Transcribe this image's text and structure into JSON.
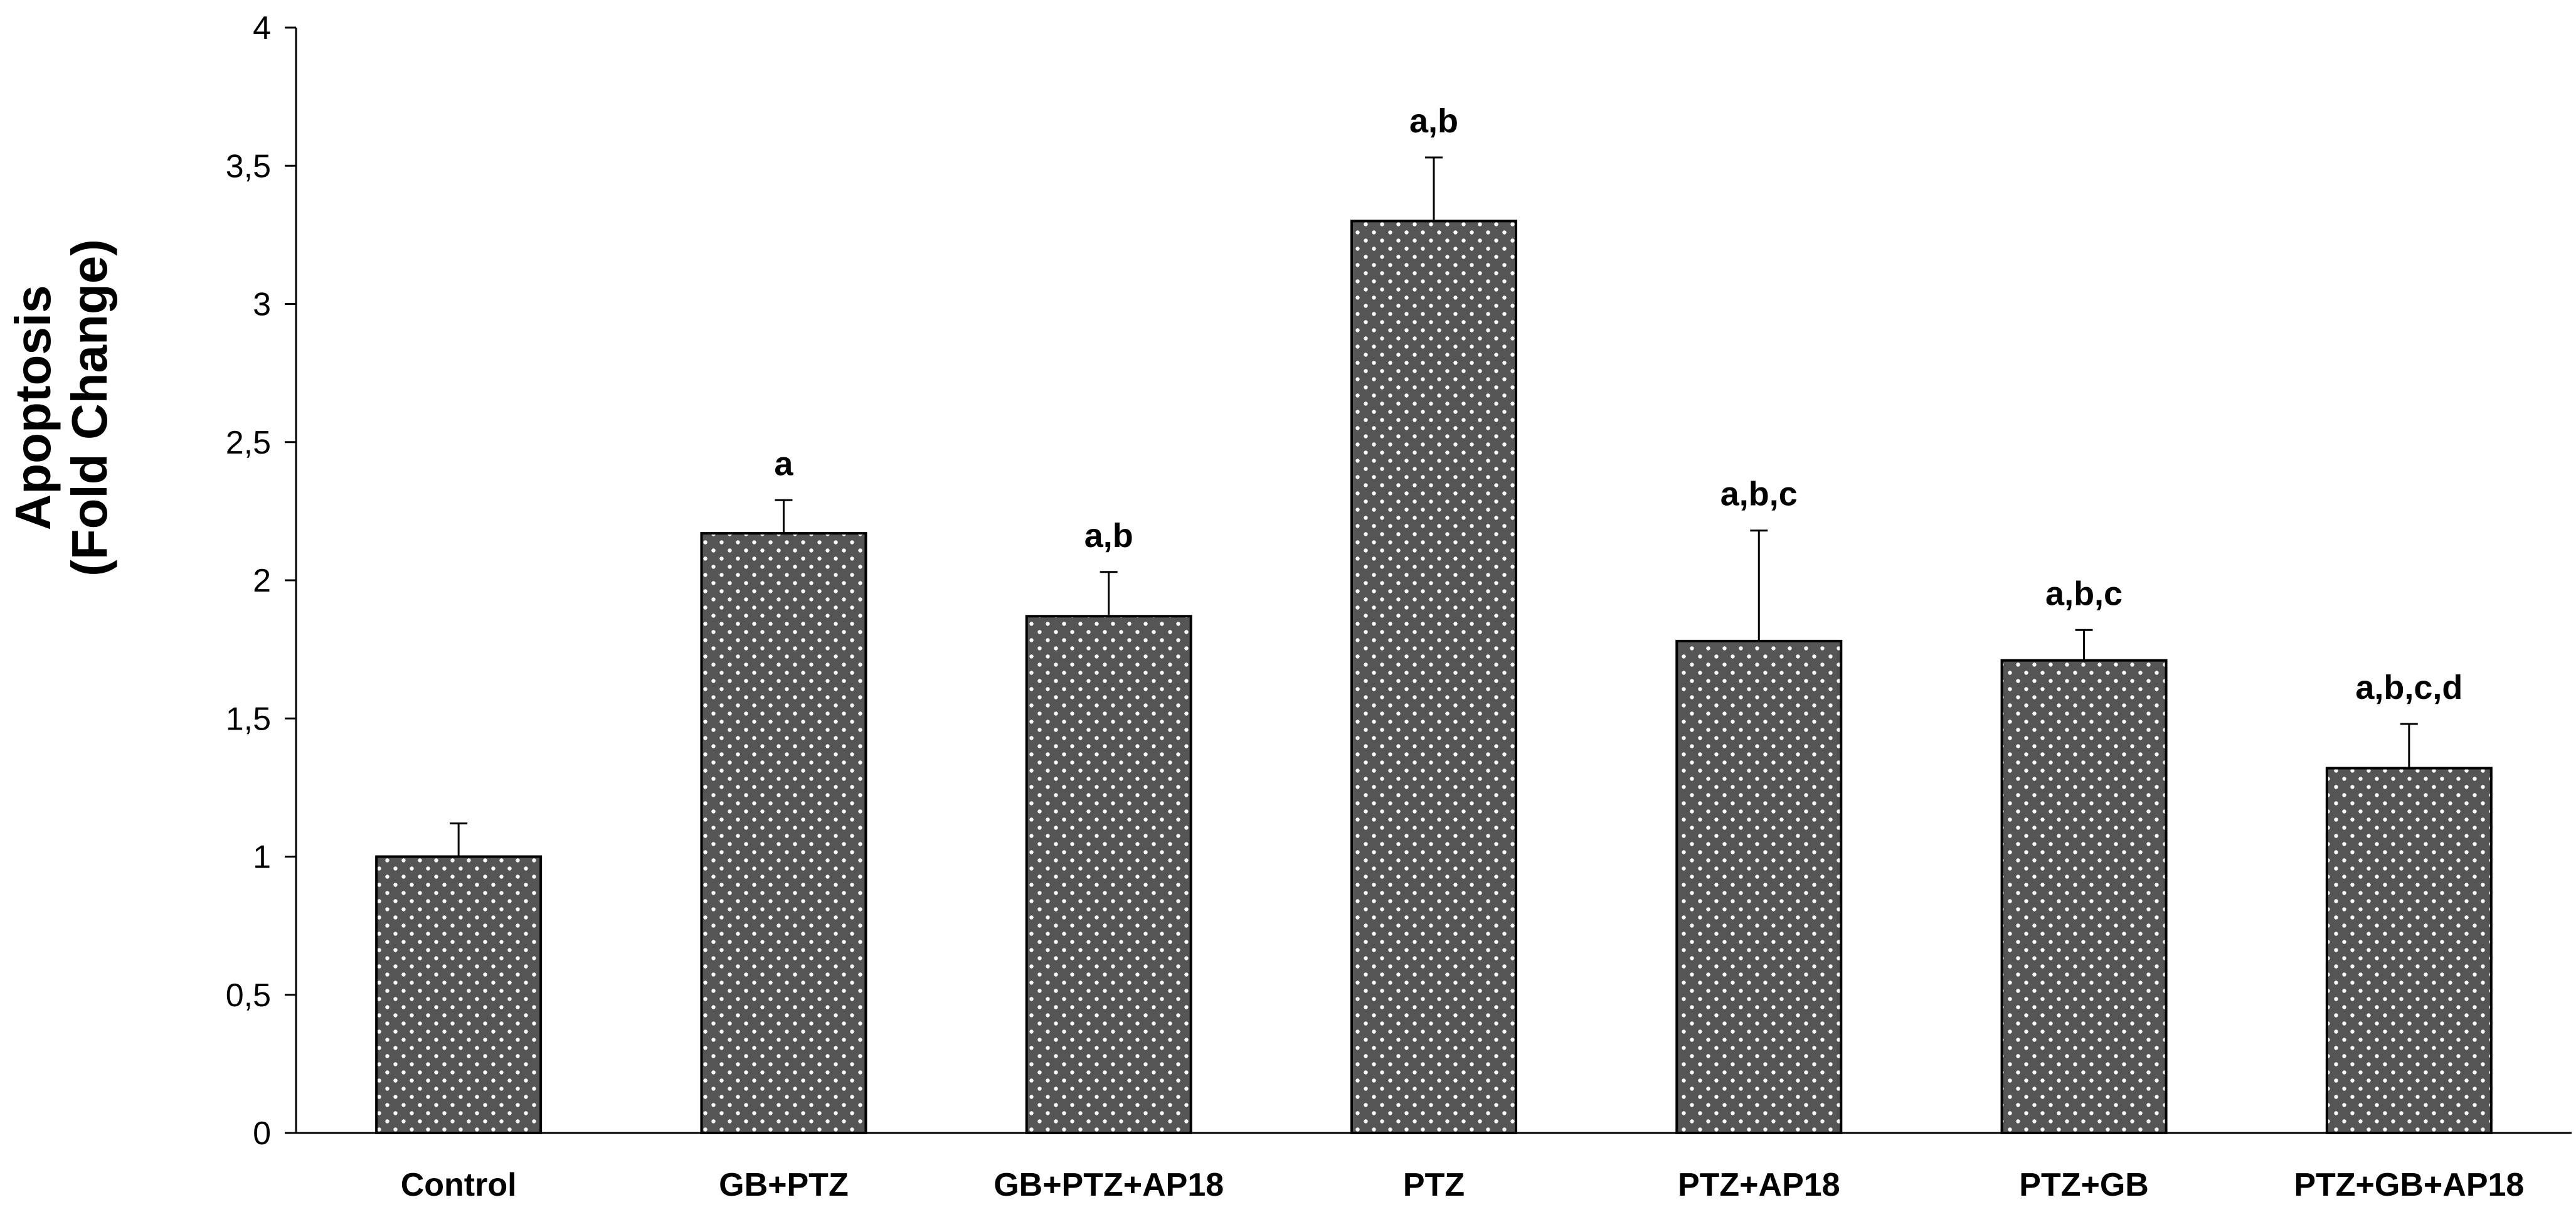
{
  "chart_data": {
    "type": "bar",
    "categories": [
      "Control",
      "GB+PTZ",
      "GB+PTZ+AP18",
      "PTZ",
      "PTZ+AP18",
      "PTZ+GB",
      "PTZ+GB+AP18"
    ],
    "values": [
      1.0,
      2.17,
      1.87,
      3.3,
      1.78,
      1.71,
      1.32
    ],
    "errors": [
      0.12,
      0.12,
      0.16,
      0.23,
      0.4,
      0.11,
      0.16
    ],
    "annotations": [
      "",
      "a",
      "a,b",
      "a,b",
      "a,b,c",
      "a,b,c",
      "a,b,c,d"
    ],
    "ylabel_line1": "Apoptosis",
    "ylabel_line2": "(Fold Change)",
    "yticks": [
      0,
      0.5,
      1,
      1.5,
      2,
      2.5,
      3,
      3.5,
      4
    ],
    "ytick_labels": [
      "0",
      "0,5",
      "1",
      "1,5",
      "2",
      "2,5",
      "3",
      "3,5",
      "4"
    ],
    "ylim": [
      0,
      4
    ],
    "grid": false,
    "legend": "none",
    "bar_color": "#555555",
    "bar_edge_color": "#000000",
    "pattern": "white-dots"
  }
}
